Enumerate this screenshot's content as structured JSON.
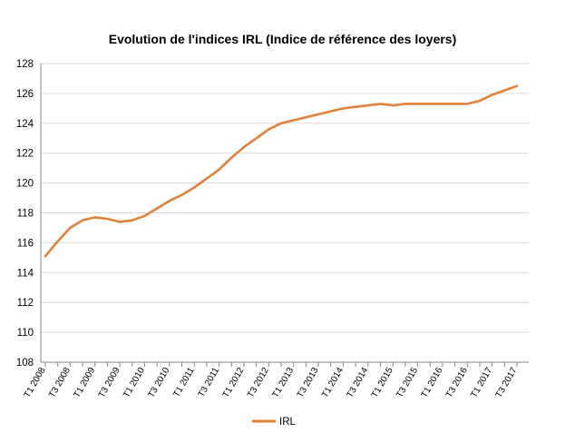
{
  "chart_data": {
    "type": "line",
    "title": "Evolution de l'indices IRL (Indice de référence des loyers)",
    "xlabel": "",
    "ylabel": "",
    "ylim": [
      108,
      128
    ],
    "yticks": [
      "108",
      "110",
      "112",
      "114",
      "116",
      "118",
      "120",
      "122",
      "124",
      "126",
      "128"
    ],
    "x_tick_labels": [
      "T1 2008",
      "T3 2008",
      "T1 2009",
      "T3 2009",
      "T1 2010",
      "T3 2010",
      "T1 2011",
      "T3 2011",
      "T1 2012",
      "T3 2012",
      "T1 2013",
      "T3 2013",
      "T1 2014",
      "T3 2014",
      "T1 2015",
      "T3 2015",
      "T1 2016",
      "T3 2016",
      "T1 2017",
      "T3 2017"
    ],
    "x": [
      "T1 2008",
      "T2 2008",
      "T3 2008",
      "T4 2008",
      "T1 2009",
      "T2 2009",
      "T3 2009",
      "T4 2009",
      "T1 2010",
      "T2 2010",
      "T3 2010",
      "T4 2010",
      "T1 2011",
      "T2 2011",
      "T3 2011",
      "T4 2011",
      "T1 2012",
      "T2 2012",
      "T3 2012",
      "T4 2012",
      "T1 2013",
      "T2 2013",
      "T3 2013",
      "T4 2013",
      "T1 2014",
      "T2 2014",
      "T3 2014",
      "T4 2014",
      "T1 2015",
      "T2 2015",
      "T3 2015",
      "T4 2015",
      "T1 2016",
      "T2 2016",
      "T3 2016",
      "T4 2016",
      "T1 2017",
      "T2 2017",
      "T3 2017"
    ],
    "series": [
      {
        "name": "IRL",
        "color": "#E0803A",
        "values": [
          115.1,
          116.1,
          117.0,
          117.5,
          117.7,
          117.6,
          117.4,
          117.5,
          117.8,
          118.3,
          118.8,
          119.2,
          119.7,
          120.3,
          120.9,
          121.7,
          122.4,
          123.0,
          123.6,
          124.0,
          124.2,
          124.4,
          124.6,
          124.8,
          125.0,
          125.1,
          125.2,
          125.3,
          125.2,
          125.3,
          125.3,
          125.3,
          125.3,
          125.3,
          125.3,
          125.5,
          125.9,
          126.2,
          126.5
        ]
      }
    ],
    "grid": true,
    "legend_position": "bottom"
  }
}
